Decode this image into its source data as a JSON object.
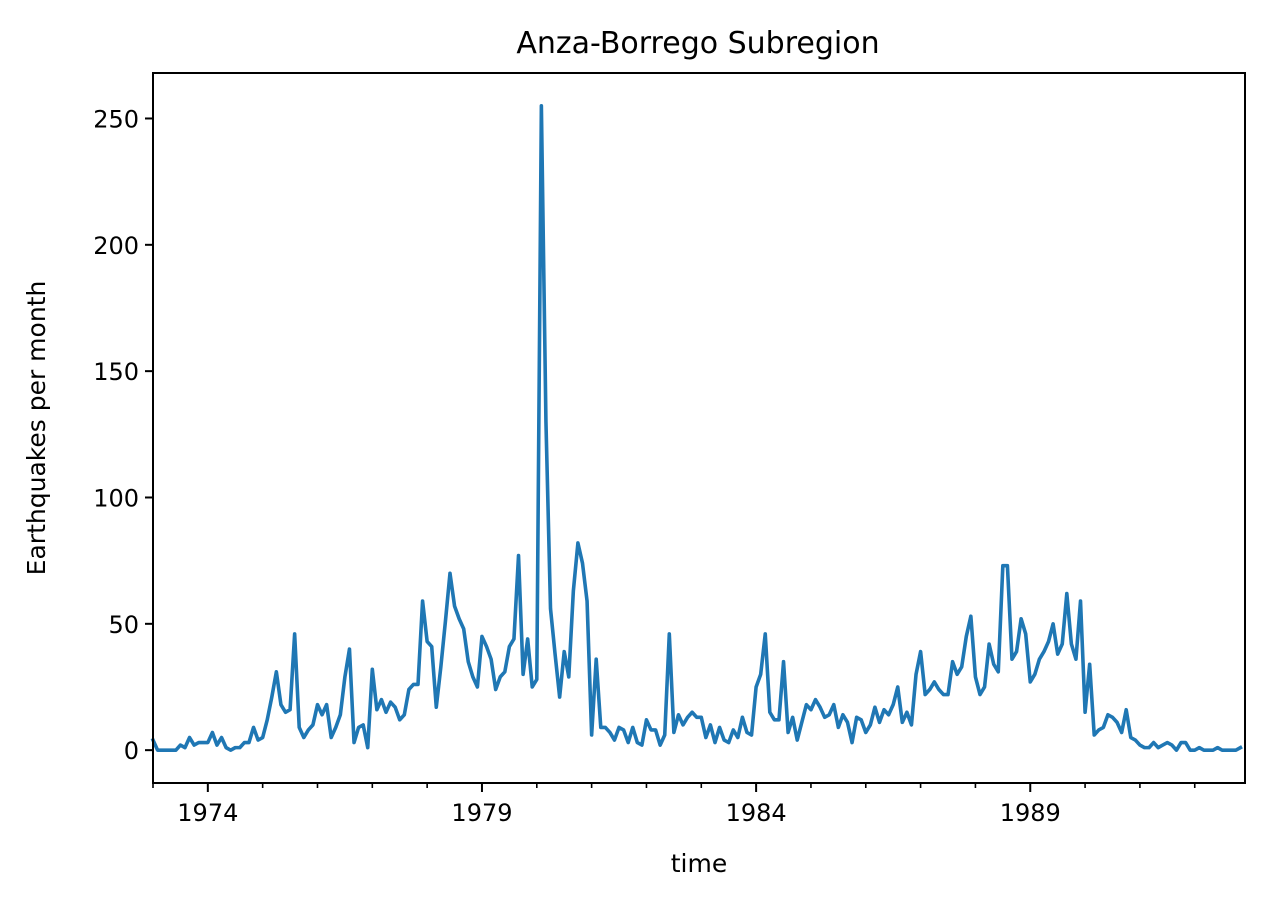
{
  "chart_data": {
    "type": "line",
    "title": "Anza-Borrego Subregion",
    "xlabel": "time",
    "ylabel": "Earthquakes per month",
    "x_start": "1973-01",
    "x_end": "1992-12",
    "xlim": [
      "1973-01",
      "1992-12"
    ],
    "ylim": [
      -13,
      268
    ],
    "x_ticks": [
      {
        "date": "1974-01",
        "label": "1974"
      },
      {
        "date": "1979-01",
        "label": "1979"
      },
      {
        "date": "1984-01",
        "label": "1984"
      },
      {
        "date": "1989-01",
        "label": "1989"
      }
    ],
    "y_ticks": [
      0,
      50,
      100,
      150,
      200,
      250
    ],
    "grid": false,
    "color": "#1f77b4",
    "series": [
      {
        "values": [
          4,
          0,
          0,
          0,
          0,
          0,
          2,
          1,
          5,
          2,
          3,
          3,
          3,
          7,
          2,
          5,
          1,
          0,
          1,
          1,
          3,
          3,
          9,
          4,
          5,
          12,
          21,
          31,
          18,
          15,
          16,
          46,
          9,
          5,
          8,
          10,
          18,
          14,
          18,
          5,
          9,
          14,
          29,
          40,
          3,
          9,
          10,
          1,
          32,
          16,
          20,
          15,
          19,
          17,
          12,
          14,
          24,
          26,
          26,
          59,
          43,
          41,
          17,
          33,
          51,
          70,
          57,
          52,
          48,
          35,
          29,
          25,
          45,
          41,
          36,
          24,
          29,
          31,
          41,
          44,
          77,
          30,
          44,
          25,
          28,
          255,
          130,
          56,
          38,
          21,
          39,
          29,
          63,
          82,
          74,
          59,
          6,
          36,
          9,
          9,
          7,
          4,
          9,
          8,
          3,
          9,
          3,
          2,
          12,
          8,
          8,
          2,
          6,
          46,
          7,
          14,
          10,
          13,
          15,
          13,
          13,
          5,
          10,
          3,
          9,
          4,
          3,
          8,
          5,
          13,
          7,
          6,
          25,
          30,
          46,
          15,
          12,
          12,
          35,
          7,
          13,
          4,
          11,
          18,
          16,
          20,
          17,
          13,
          14,
          18,
          9,
          14,
          11,
          3,
          13,
          12,
          7,
          10,
          17,
          11,
          16,
          14,
          18,
          25,
          11,
          15,
          10,
          30,
          39,
          22,
          24,
          27,
          24,
          22,
          22,
          35,
          30,
          33,
          45,
          53,
          29,
          22,
          25,
          42,
          34,
          31,
          73,
          73,
          36,
          39,
          52,
          46,
          27,
          30,
          36,
          39,
          43,
          50,
          38,
          42,
          62,
          42,
          36,
          59,
          15,
          34,
          6,
          8,
          9,
          14,
          13,
          11,
          7,
          16,
          5,
          4,
          2,
          1,
          1,
          3,
          1,
          2,
          3,
          2,
          0,
          3,
          3,
          0,
          0,
          1,
          0,
          0,
          0,
          1,
          0,
          0,
          0,
          0,
          1
        ]
      }
    ]
  }
}
